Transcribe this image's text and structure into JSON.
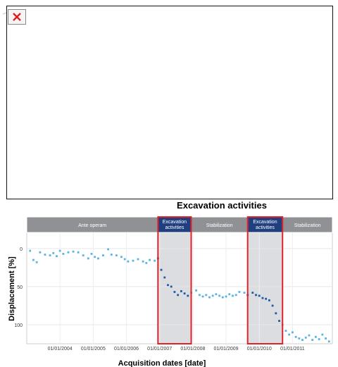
{
  "icons": {
    "broken_image": "broken-image-icon"
  },
  "colors": {
    "header_gray": "#8f9194",
    "header_blue": "#1f3f7f",
    "shade": "#dcdde0",
    "highlight": "#e0222a",
    "point_light": "#59b4e3",
    "point_dark": "#1d5aa6"
  },
  "chart_data": {
    "type": "scatter",
    "title": "Excavation activities",
    "xlabel": "Acquisition dates [date]",
    "ylabel": "Displacement [%]",
    "ylim": [
      -10,
      125
    ],
    "y_inverted": true,
    "yticks": [
      "0",
      "50",
      "100"
    ],
    "xticks": [
      "01/01/2004",
      "01/01/2005",
      "01/01/2006",
      "01/01/2007",
      "01/01/2008",
      "01/01/2009",
      "01/01/2010",
      "01/01/2011"
    ],
    "phases": [
      "Ante operam",
      "Excavation activities",
      "Stabilization",
      "Excavation activities",
      "Stabilization"
    ],
    "highlighted_phases": [
      1,
      3
    ],
    "points": [
      [
        2003.1,
        3
      ],
      [
        2003.2,
        15
      ],
      [
        2003.3,
        18
      ],
      [
        2003.4,
        5
      ],
      [
        2003.55,
        8
      ],
      [
        2003.7,
        9
      ],
      [
        2003.8,
        6
      ],
      [
        2003.9,
        10
      ],
      [
        2004.0,
        3
      ],
      [
        2004.1,
        7
      ],
      [
        2004.25,
        5
      ],
      [
        2004.4,
        4
      ],
      [
        2004.55,
        5
      ],
      [
        2004.7,
        9
      ],
      [
        2004.85,
        13
      ],
      [
        2004.95,
        7
      ],
      [
        2005.05,
        11
      ],
      [
        2005.15,
        13
      ],
      [
        2005.3,
        9
      ],
      [
        2005.45,
        1
      ],
      [
        2005.55,
        8
      ],
      [
        2005.7,
        9
      ],
      [
        2005.85,
        11
      ],
      [
        2005.95,
        14
      ],
      [
        2006.05,
        17
      ],
      [
        2006.2,
        16
      ],
      [
        2006.35,
        14
      ],
      [
        2006.5,
        17
      ],
      [
        2006.6,
        19
      ],
      [
        2006.7,
        15
      ],
      [
        2006.85,
        16
      ],
      [
        2006.95,
        13
      ],
      [
        2007.05,
        28
      ],
      [
        2007.15,
        38
      ],
      [
        2007.25,
        48
      ],
      [
        2007.35,
        50
      ],
      [
        2007.45,
        57
      ],
      [
        2007.55,
        61
      ],
      [
        2007.65,
        56
      ],
      [
        2007.75,
        59
      ],
      [
        2007.85,
        62
      ],
      [
        2007.95,
        58
      ],
      [
        2008.1,
        55
      ],
      [
        2008.2,
        61
      ],
      [
        2008.3,
        63
      ],
      [
        2008.4,
        61
      ],
      [
        2008.5,
        64
      ],
      [
        2008.6,
        62
      ],
      [
        2008.7,
        60
      ],
      [
        2008.8,
        62
      ],
      [
        2008.9,
        64
      ],
      [
        2009.0,
        63
      ],
      [
        2009.1,
        60
      ],
      [
        2009.2,
        62
      ],
      [
        2009.3,
        61
      ],
      [
        2009.4,
        57
      ],
      [
        2009.55,
        58
      ],
      [
        2009.65,
        61
      ],
      [
        2009.8,
        58
      ],
      [
        2009.9,
        61
      ],
      [
        2010.0,
        62
      ],
      [
        2010.1,
        65
      ],
      [
        2010.2,
        66
      ],
      [
        2010.3,
        68
      ],
      [
        2010.4,
        75
      ],
      [
        2010.5,
        85
      ],
      [
        2010.6,
        95
      ],
      [
        2010.7,
        100
      ],
      [
        2010.8,
        108
      ],
      [
        2010.9,
        113
      ],
      [
        2011.0,
        110
      ],
      [
        2011.1,
        116
      ],
      [
        2011.2,
        118
      ],
      [
        2011.3,
        120
      ],
      [
        2011.4,
        117
      ],
      [
        2011.5,
        114
      ],
      [
        2011.6,
        120
      ],
      [
        2011.7,
        116
      ],
      [
        2011.8,
        119
      ],
      [
        2011.9,
        113
      ],
      [
        2012.0,
        118
      ],
      [
        2012.1,
        122
      ]
    ]
  }
}
